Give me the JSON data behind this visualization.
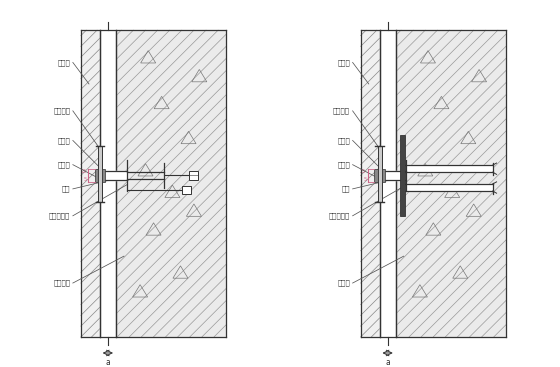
{
  "bg_color": "#ffffff",
  "line_color": "#333333",
  "labels_left": [
    "大理石",
    "不锈钢针",
    "海棉条",
    "耐候胶",
    "螺栓",
    "镀锌板支架",
    "脚踩螺栓"
  ],
  "labels_right": [
    "大理石",
    "不锈钢针",
    "海棉条",
    "耐候胶",
    "螺栓",
    "镀锌板支架",
    "预埋件"
  ],
  "dim_label": "a",
  "marble_hatch_color": "#aaaaaa",
  "wall_hatch_color": "#aaaaaa",
  "pink_color": "#cc6688",
  "tri_color": "#777777",
  "label_fontsize": 5.5
}
